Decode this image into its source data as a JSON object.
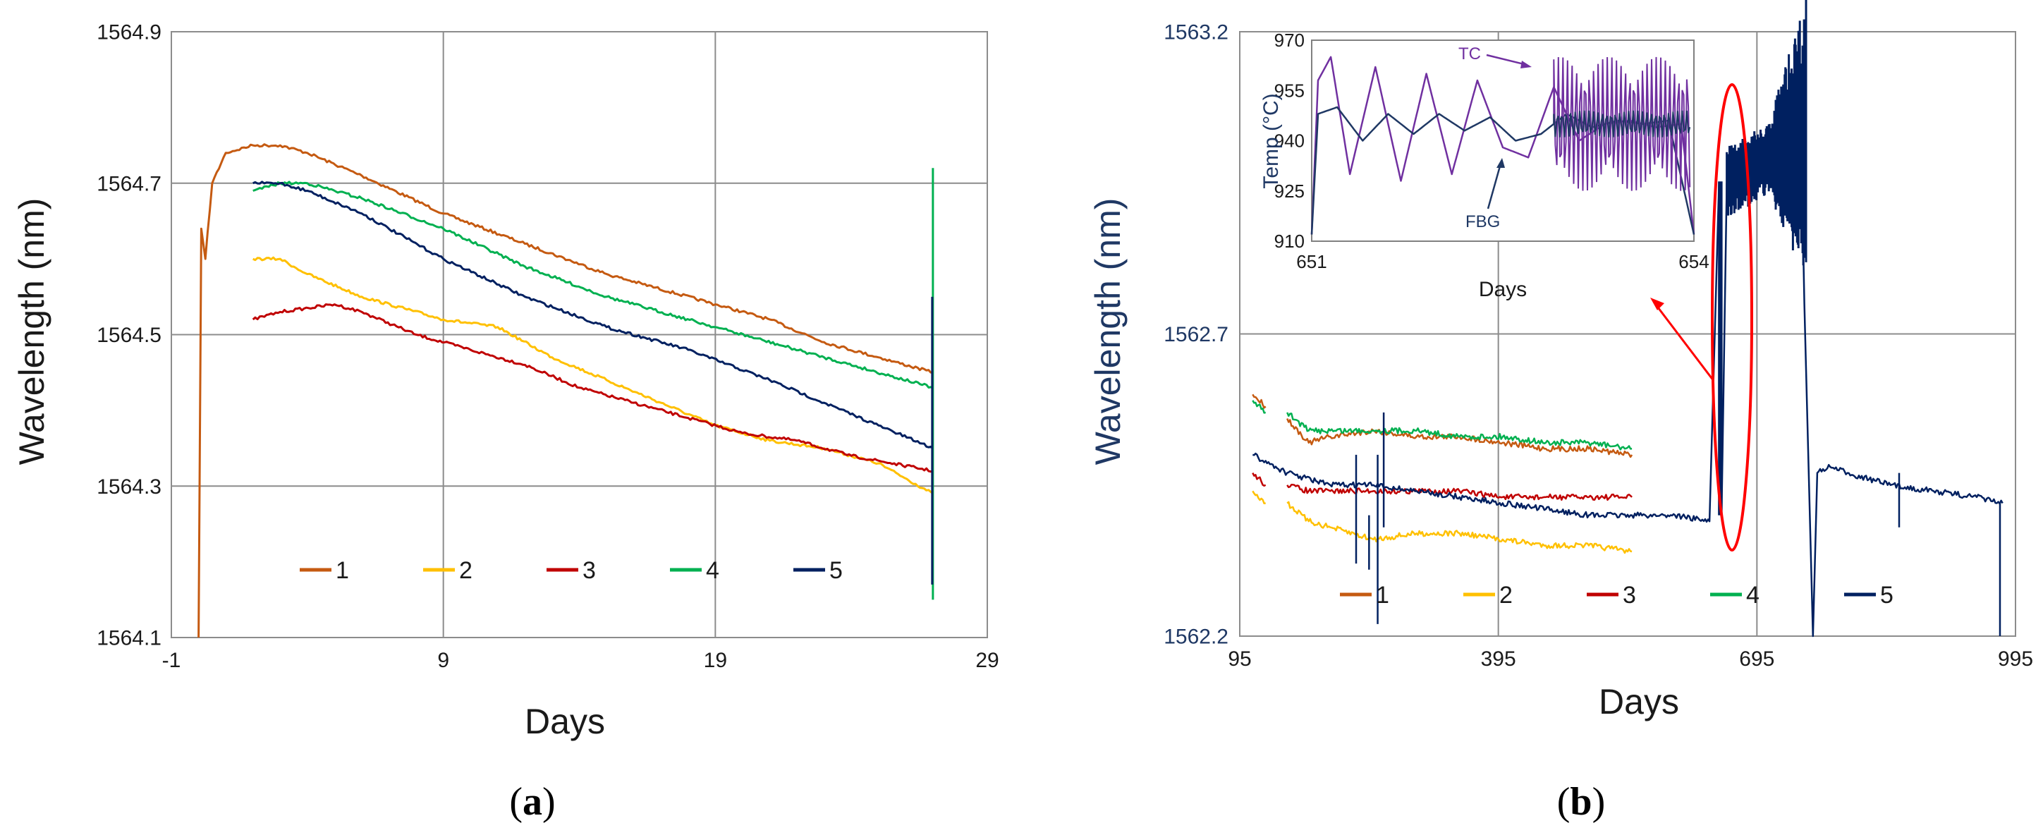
{
  "chart_data": [
    {
      "type": "line",
      "panel_label": "a",
      "xlabel": "Days",
      "ylabel": "Wavelength (nm)",
      "xlim": [
        -1,
        29
      ],
      "ylim": [
        1564.1,
        1564.9
      ],
      "xticks": [
        "-1",
        "9",
        "19",
        "29"
      ],
      "yticks": [
        "1564.1",
        "1564.3",
        "1564.5",
        "1564.7",
        "1564.9"
      ],
      "legend": [
        "1",
        "2",
        "3",
        "4",
        "5"
      ],
      "series": [
        {
          "name": "1",
          "color": "#c55a11",
          "x": [
            0.0,
            0.1,
            0.25,
            0.5,
            1,
            2,
            3,
            4,
            6,
            9,
            12,
            15,
            19,
            21,
            23,
            25,
            27
          ],
          "y": [
            1564.1,
            1564.64,
            1564.6,
            1564.7,
            1564.74,
            1564.75,
            1564.75,
            1564.74,
            1564.71,
            1564.66,
            1564.62,
            1564.58,
            1564.54,
            1564.52,
            1564.49,
            1564.47,
            1564.45
          ]
        },
        {
          "name": "2",
          "color": "#ffc000",
          "x": [
            2,
            3,
            4,
            6,
            9,
            11,
            13,
            15,
            17,
            19,
            21,
            23,
            25,
            27
          ],
          "y": [
            1564.6,
            1564.6,
            1564.58,
            1564.55,
            1564.52,
            1564.51,
            1564.47,
            1564.44,
            1564.41,
            1564.38,
            1564.36,
            1564.35,
            1564.33,
            1564.29
          ]
        },
        {
          "name": "3",
          "color": "#c00000",
          "x": [
            2,
            3,
            5,
            6,
            8,
            10,
            12,
            14,
            16,
            18,
            20,
            22,
            24,
            27
          ],
          "y": [
            1564.52,
            1564.53,
            1564.54,
            1564.53,
            1564.5,
            1564.48,
            1564.46,
            1564.43,
            1564.41,
            1564.39,
            1564.37,
            1564.36,
            1564.34,
            1564.32
          ]
        },
        {
          "name": "4",
          "color": "#00b050",
          "x": [
            2,
            3,
            4,
            6,
            9,
            12,
            15,
            19,
            23,
            27
          ],
          "y": [
            1564.69,
            1564.7,
            1564.7,
            1564.68,
            1564.64,
            1564.59,
            1564.55,
            1564.51,
            1564.47,
            1564.43
          ]
        },
        {
          "name": "5",
          "color": "#002060",
          "x": [
            2,
            3,
            4,
            6,
            9,
            12,
            15,
            18,
            21,
            23,
            25,
            27
          ],
          "y": [
            1564.7,
            1564.7,
            1564.69,
            1564.66,
            1564.6,
            1564.55,
            1564.51,
            1564.48,
            1564.44,
            1564.41,
            1564.38,
            1564.35
          ]
        }
      ]
    },
    {
      "type": "line",
      "panel_label": "b",
      "xlabel": "Days",
      "ylabel": "Wavelength (nm)",
      "xlim": [
        95,
        995
      ],
      "ylim": [
        1562.2,
        1563.2
      ],
      "xticks": [
        "95",
        "395",
        "695",
        "995"
      ],
      "yticks": [
        "1562.2",
        "1562.7",
        "1563.2"
      ],
      "legend": [
        "1",
        "2",
        "3",
        "4",
        "5"
      ],
      "series": [
        {
          "name": "1",
          "color": "#c55a11",
          "x": [
            110,
            125,
            135,
            150,
            175,
            200,
            250,
            300,
            350,
            400,
            450,
            500,
            550
          ],
          "y": [
            1562.6,
            1562.58,
            null,
            1562.56,
            1562.52,
            1562.53,
            1562.54,
            1562.53,
            1562.53,
            1562.52,
            1562.51,
            1562.51,
            1562.5
          ]
        },
        {
          "name": "2",
          "color": "#ffc000",
          "x": [
            110,
            125,
            135,
            150,
            175,
            200,
            250,
            300,
            350,
            400,
            450,
            500,
            550
          ],
          "y": [
            1562.44,
            1562.42,
            null,
            1562.42,
            1562.39,
            1562.38,
            1562.36,
            1562.37,
            1562.37,
            1562.36,
            1562.35,
            1562.35,
            1562.34
          ]
        },
        {
          "name": "3",
          "color": "#c00000",
          "x": [
            110,
            125,
            135,
            150,
            175,
            200,
            250,
            300,
            350,
            400,
            450,
            500,
            550
          ],
          "y": [
            1562.47,
            1562.45,
            null,
            1562.45,
            1562.44,
            1562.44,
            1562.44,
            1562.44,
            1562.44,
            1562.43,
            1562.43,
            1562.43,
            1562.43
          ]
        },
        {
          "name": "4",
          "color": "#00b050",
          "x": [
            110,
            125,
            135,
            150,
            175,
            200,
            250,
            300,
            350,
            400,
            450,
            500,
            550
          ],
          "y": [
            1562.59,
            1562.57,
            null,
            1562.57,
            1562.54,
            1562.54,
            1562.54,
            1562.54,
            1562.53,
            1562.53,
            1562.52,
            1562.52,
            1562.51
          ]
        },
        {
          "name": "5",
          "color": "#002060",
          "x": [
            110,
            150,
            200,
            250,
            300,
            350,
            400,
            450,
            500,
            550,
            600,
            640,
            651,
            652,
            654,
            660,
            720,
            745,
            750,
            760,
            765,
            780,
            800,
            850,
            900,
            950,
            980
          ],
          "y": [
            1562.5,
            1562.47,
            1562.45,
            1562.45,
            1562.44,
            1562.43,
            1562.42,
            1562.41,
            1562.4,
            1562.4,
            1562.4,
            1562.39,
            1562.95,
            1562.93,
            1562.4,
            1562.95,
            1563.0,
            1563.12,
            1562.75,
            1562.2,
            1562.47,
            1562.48,
            1562.47,
            1562.45,
            1562.44,
            1562.43,
            1562.42
          ]
        }
      ]
    },
    {
      "type": "line",
      "panel_label": "inset",
      "xlabel": "Days",
      "ylabel": "Temp (°C)",
      "xlim": [
        651,
        654
      ],
      "ylim": [
        910,
        970
      ],
      "xticks": [
        "651",
        "654"
      ],
      "yticks": [
        "910",
        "925",
        "940",
        "955",
        "970"
      ],
      "annotations": [
        "TC",
        "FBG"
      ],
      "series": [
        {
          "name": "TC",
          "color": "#7030a0",
          "x": [
            651,
            651.05,
            651.15,
            651.3,
            651.5,
            651.7,
            651.9,
            652.1,
            652.3,
            652.5,
            652.7,
            652.9,
            653.1,
            653.3,
            653.5,
            653.7,
            653.9,
            654
          ],
          "y": [
            912,
            958,
            965,
            930,
            962,
            928,
            960,
            930,
            958,
            938,
            935,
            956,
            940,
            945,
            946,
            944,
            945,
            912
          ]
        },
        {
          "name": "FBG",
          "color": "#1f3864",
          "x": [
            651,
            651.05,
            651.2,
            651.4,
            651.6,
            651.8,
            652.0,
            652.2,
            652.4,
            652.6,
            652.8,
            653.0,
            653.2,
            653.4,
            653.6,
            653.8,
            654
          ],
          "y": [
            912,
            948,
            950,
            940,
            948,
            942,
            948,
            943,
            947,
            940,
            942,
            948,
            944,
            946,
            945,
            946,
            912
          ]
        }
      ]
    }
  ]
}
